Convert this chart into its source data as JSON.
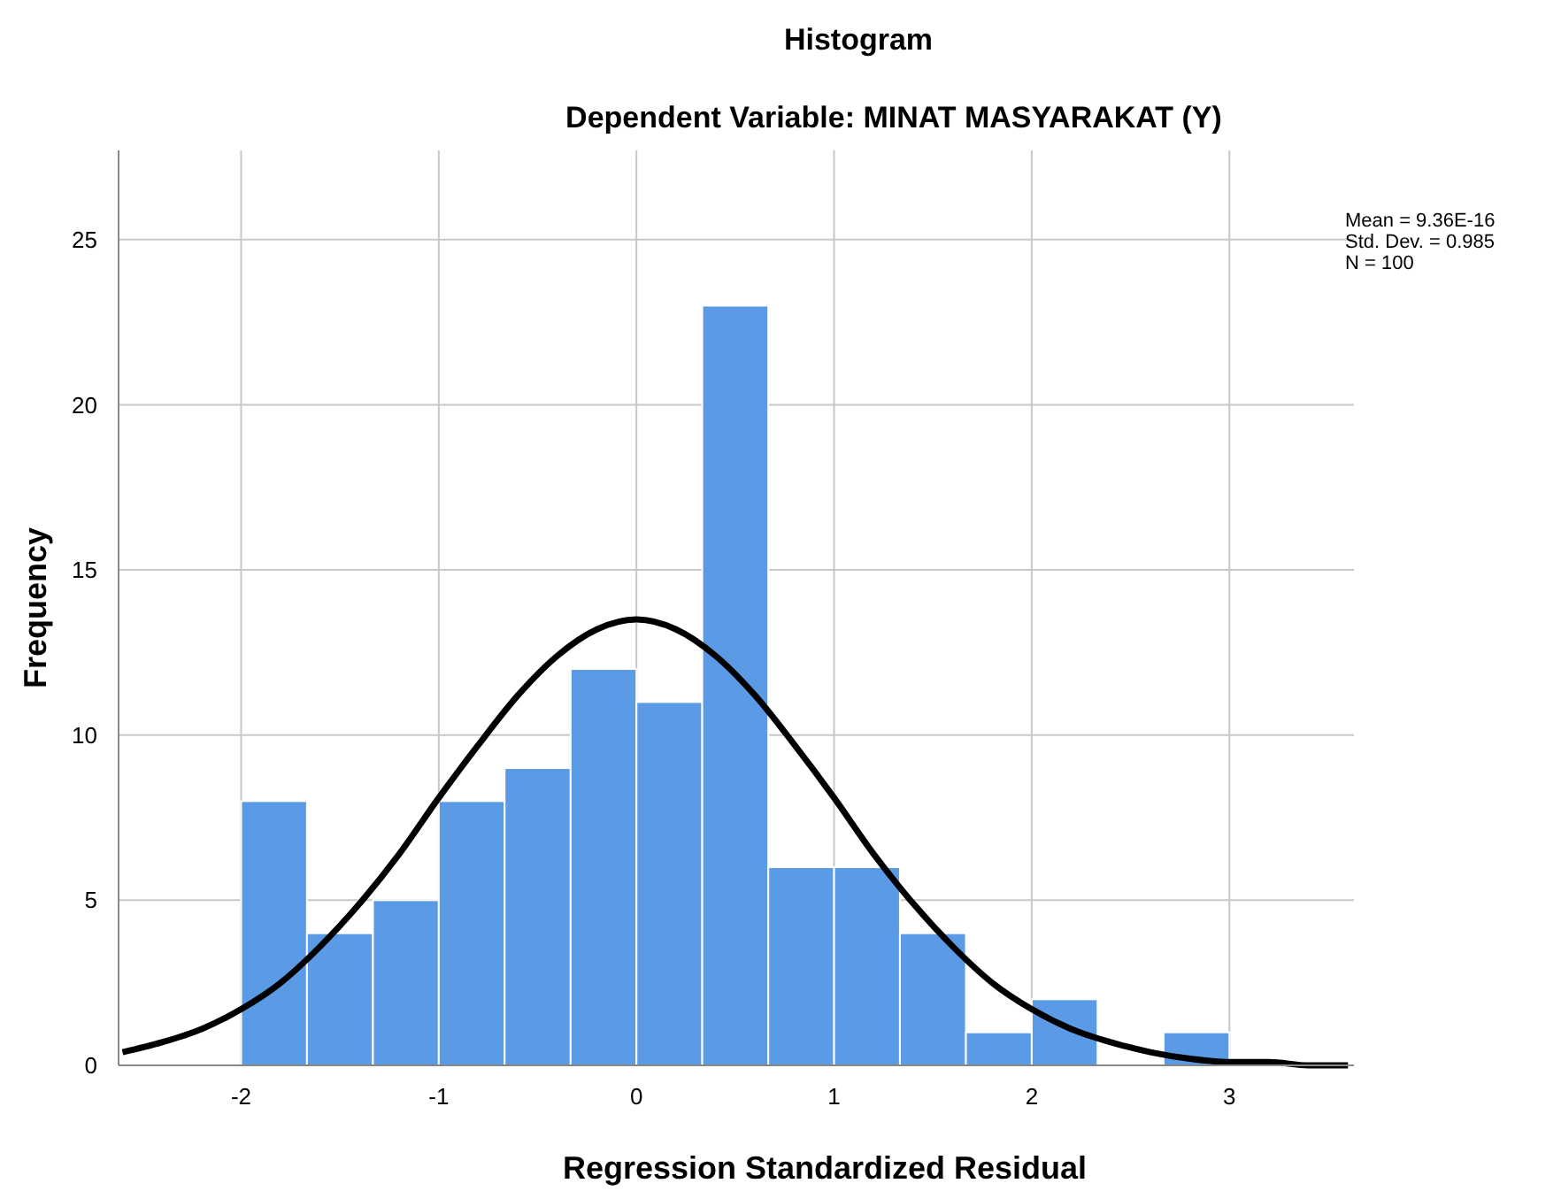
{
  "chart_data": {
    "type": "histogram",
    "title": "Histogram",
    "subtitle": "Dependent Variable: MINAT MASYARAKAT (Y)",
    "xlabel": "Regression Standardized Residual",
    "ylabel": "Frequency",
    "annotations": [
      "Mean = 9.36E-16",
      "Std. Dev. = 0.985",
      "N = 100"
    ],
    "bins": [
      -2,
      -1.667,
      -1.333,
      -1,
      -0.667,
      -0.333,
      0,
      0.333,
      0.667,
      1,
      1.333,
      1.667,
      2,
      2.333,
      2.667,
      3
    ],
    "series": [
      {
        "color": "#5b9be6",
        "values": [
          8,
          4,
          5,
          8,
          9,
          12,
          11,
          23,
          6,
          6,
          4,
          1,
          2,
          0,
          1
        ]
      },
      {
        "type": "line",
        "color": "#000000",
        "x": [
          -2.6,
          -2.4,
          -2.2,
          -2,
          -1.8,
          -1.6,
          -1.4,
          -1.2,
          -1,
          -0.8,
          -0.6,
          -0.4,
          -0.2,
          0,
          0.2,
          0.4,
          0.6,
          0.8,
          1,
          1.2,
          1.4,
          1.6,
          1.8,
          2,
          2.2,
          2.4,
          2.6,
          2.8,
          3,
          3.2,
          3.4,
          3.6
        ],
        "values": [
          0.4,
          0.7,
          1.1,
          1.7,
          2.5,
          3.6,
          4.9,
          6.4,
          8.1,
          9.7,
          11.2,
          12.4,
          13.2,
          13.5,
          13.2,
          12.4,
          11.2,
          9.7,
          8.1,
          6.4,
          4.9,
          3.6,
          2.5,
          1.7,
          1.1,
          0.7,
          0.4,
          0.2,
          0.1,
          0.1,
          0,
          0
        ]
      }
    ],
    "xlim": [
      -2.62,
      3.63
    ],
    "ylim": [
      0,
      27.7
    ],
    "xticks": [
      -2,
      -1,
      0,
      1,
      2,
      3
    ],
    "yticks": [
      0,
      5,
      10,
      15,
      20,
      25
    ],
    "grid": true,
    "line_style": "solid",
    "marker": "none"
  }
}
